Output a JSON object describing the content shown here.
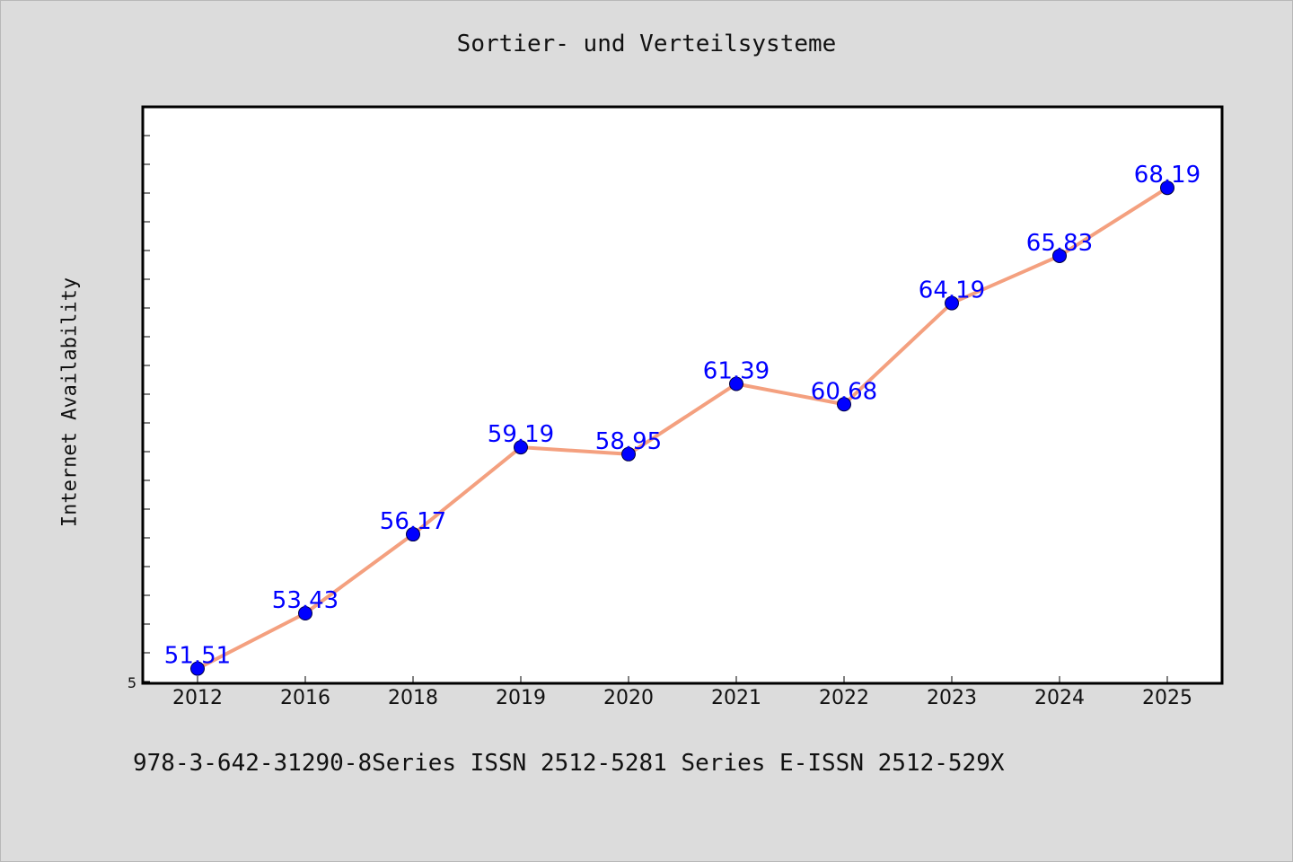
{
  "title": "Sortier- und Verteilsysteme",
  "footer": "978-3-642-31290-8Series ISSN 2512-5281 Series E-ISSN 2512-529X",
  "colors": {
    "background": "#dcdcdc",
    "plot_background": "#ffffff",
    "line": "#f4a07f",
    "marker": "#0000ff",
    "data_label": "#0000ff"
  },
  "chart_data": {
    "type": "line",
    "title": "Sortier- und Verteilsysteme",
    "xlabel": "",
    "ylabel": "Internet Availability",
    "categories": [
      "2012",
      "2016",
      "2018",
      "2019",
      "2020",
      "2021",
      "2022",
      "2023",
      "2024",
      "2025"
    ],
    "series": [
      {
        "values": [
          51.51,
          53.43,
          56.17,
          59.19,
          58.95,
          61.39,
          60.68,
          64.19,
          65.83,
          68.19
        ],
        "data_labels": [
          "51.51",
          "53.43",
          "56.17",
          "59.19",
          "58.95",
          "61.39",
          "60.68",
          "64.19",
          "65.83",
          "68.19"
        ]
      }
    ],
    "ylim": [
      51.0,
      71.0
    ],
    "y_min_label": "5",
    "grid": false,
    "legend": "none"
  }
}
